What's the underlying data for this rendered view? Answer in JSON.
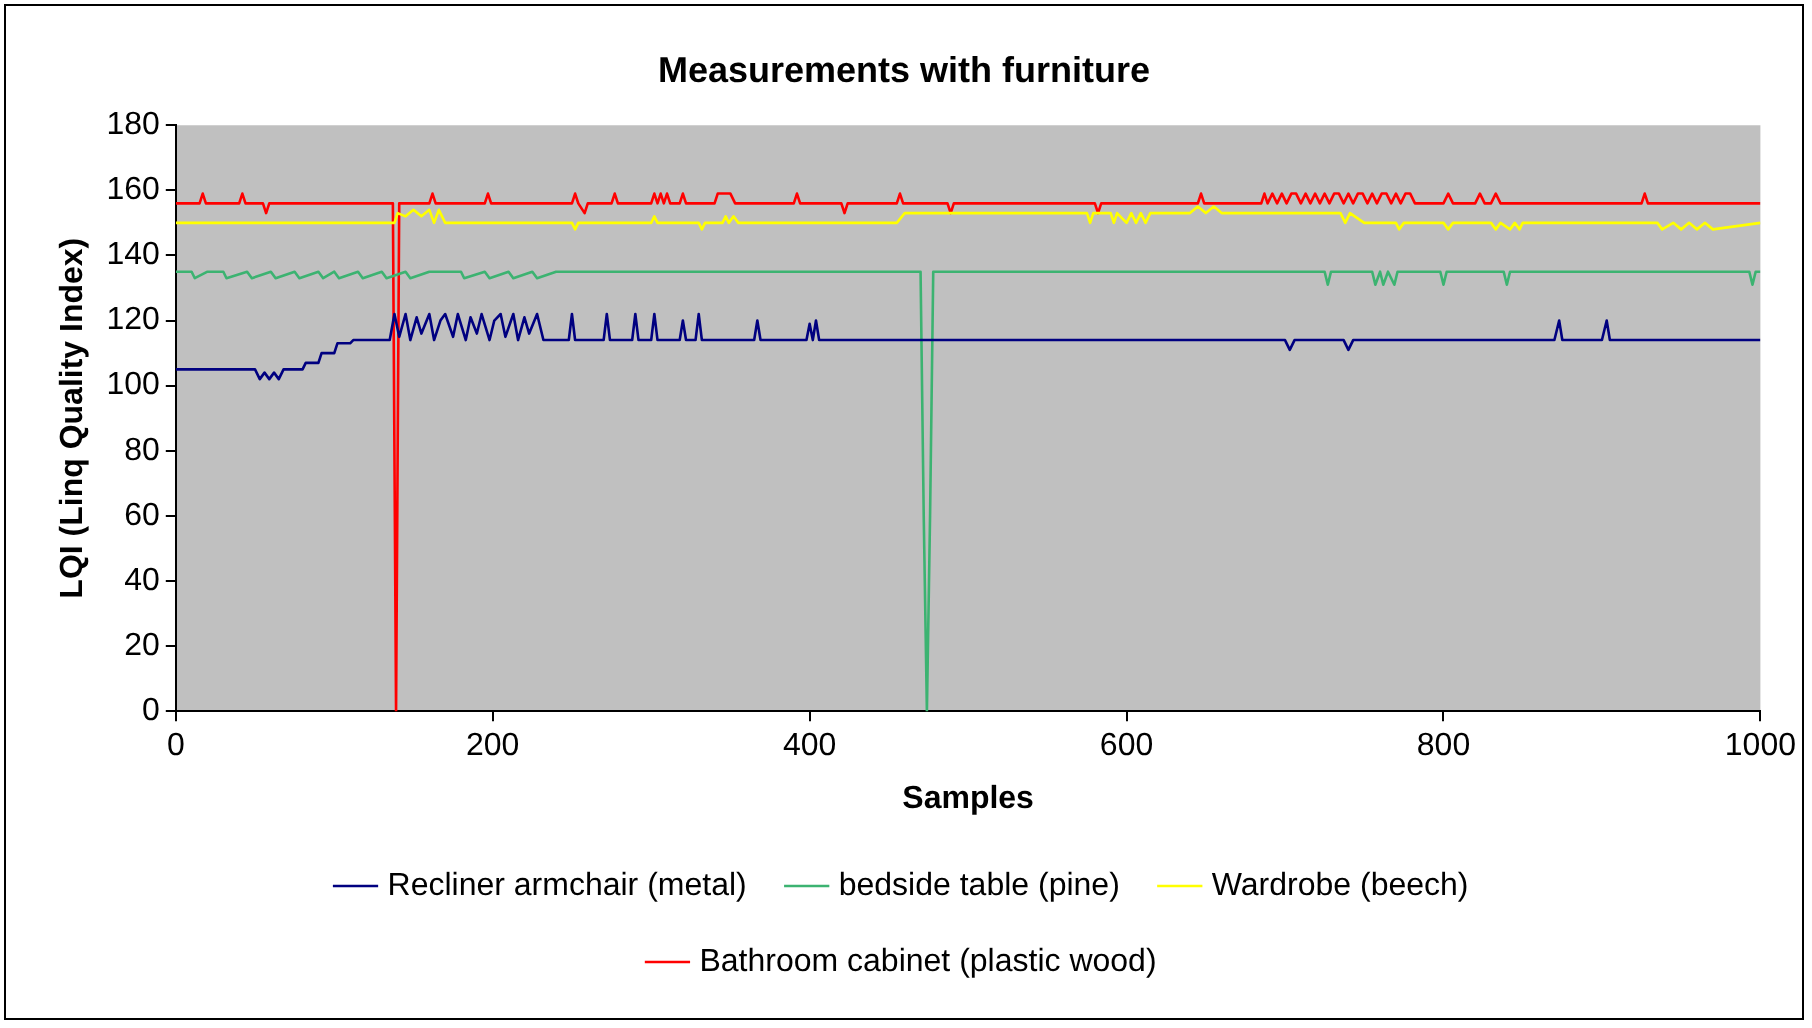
{
  "chart_data": {
    "type": "line",
    "title": "Measurements with furniture",
    "xlabel": "Samples",
    "ylabel": "LQI (Linq Quality Index)",
    "xlim": [
      0,
      1000
    ],
    "xticks": [
      0,
      200,
      400,
      600,
      800,
      1000
    ],
    "ylim": [
      0,
      180
    ],
    "yticks": [
      0,
      20,
      40,
      60,
      80,
      100,
      120,
      140,
      160,
      180
    ],
    "grid": false,
    "legend": "bottom",
    "marker": "none",
    "line_style": "solid",
    "series": [
      {
        "name": "Recliner armchair (metal)",
        "color": "#000080",
        "x": [
          0,
          50,
          53,
          56,
          59,
          62,
          65,
          68,
          72,
          80,
          82,
          90,
          92,
          100,
          102,
          110,
          112,
          135,
          138,
          141,
          145,
          148,
          152,
          155,
          160,
          163,
          167,
          170,
          175,
          178,
          183,
          186,
          190,
          193,
          198,
          201,
          205,
          208,
          213,
          216,
          220,
          223,
          228,
          232,
          236,
          248,
          250,
          252,
          270,
          272,
          274,
          288,
          290,
          292,
          300,
          302,
          304,
          318,
          320,
          322,
          328,
          330,
          332,
          365,
          367,
          369,
          398,
          400,
          402,
          404,
          406,
          408,
          700,
          703,
          706,
          737,
          740,
          743,
          870,
          873,
          875,
          900,
          903,
          905,
          1000
        ],
        "values": [
          105,
          105,
          102,
          104,
          102,
          104,
          102,
          105,
          105,
          105,
          107,
          107,
          110,
          110,
          113,
          113,
          114,
          114,
          122,
          115,
          122,
          114,
          121,
          116,
          122,
          114,
          120,
          122,
          115,
          122,
          114,
          121,
          116,
          122,
          114,
          120,
          122,
          115,
          122,
          114,
          121,
          116,
          122,
          114,
          114,
          114,
          122,
          114,
          114,
          122,
          114,
          114,
          122,
          114,
          114,
          122,
          114,
          114,
          120,
          114,
          114,
          122,
          114,
          114,
          120,
          114,
          114,
          119,
          114,
          120,
          114,
          114,
          114,
          111,
          114,
          114,
          111,
          114,
          114,
          120,
          114,
          114,
          120,
          114,
          114
        ]
      },
      {
        "name": "bedside table (pine)",
        "color": "#3cb371",
        "x": [
          0,
          10,
          12,
          20,
          30,
          32,
          45,
          48,
          60,
          63,
          75,
          78,
          90,
          93,
          100,
          103,
          115,
          118,
          130,
          133,
          145,
          148,
          160,
          180,
          182,
          195,
          198,
          210,
          213,
          225,
          228,
          240,
          470,
          472,
          474,
          476,
          478,
          725,
          727,
          729,
          755,
          757,
          760,
          762,
          765,
          769,
          771,
          798,
          800,
          802,
          838,
          840,
          842,
          993,
          995,
          997,
          1000
        ],
        "values": [
          135,
          135,
          133,
          135,
          135,
          133,
          135,
          133,
          135,
          133,
          135,
          133,
          135,
          133,
          135,
          133,
          135,
          133,
          135,
          133,
          135,
          133,
          135,
          135,
          133,
          135,
          133,
          135,
          133,
          135,
          133,
          135,
          135,
          60,
          0,
          60,
          135,
          135,
          131,
          135,
          135,
          131,
          135,
          131,
          135,
          131,
          135,
          135,
          131,
          135,
          135,
          131,
          135,
          135,
          131,
          135,
          135
        ]
      },
      {
        "name": "Wardrobe (beech)",
        "color": "#ffff00",
        "x": [
          0,
          138,
          140,
          145,
          150,
          155,
          160,
          163,
          166,
          170,
          175,
          180,
          250,
          252,
          254,
          300,
          302,
          304,
          330,
          332,
          334,
          345,
          347,
          349,
          352,
          355,
          360,
          455,
          460,
          575,
          577,
          579,
          590,
          592,
          594,
          600,
          603,
          606,
          609,
          612,
          615,
          640,
          645,
          650,
          655,
          660,
          735,
          738,
          741,
          750,
          753,
          770,
          772,
          775,
          800,
          803,
          806,
          830,
          833,
          836,
          842,
          845,
          848,
          850,
          853,
          935,
          938,
          945,
          950,
          955,
          960,
          965,
          970,
          1000
        ],
        "values": [
          150,
          150,
          153,
          152,
          154,
          152,
          154,
          150,
          154,
          150,
          150,
          150,
          150,
          148,
          150,
          150,
          152,
          150,
          150,
          148,
          150,
          150,
          152,
          150,
          152,
          150,
          150,
          150,
          153,
          153,
          150,
          153,
          153,
          150,
          153,
          150,
          153,
          150,
          153,
          150,
          153,
          153,
          155,
          153,
          155,
          153,
          153,
          150,
          153,
          150,
          150,
          150,
          148,
          150,
          150,
          148,
          150,
          150,
          148,
          150,
          148,
          150,
          148,
          150,
          150,
          150,
          148,
          150,
          148,
          150,
          148,
          150,
          148,
          150
        ]
      },
      {
        "name": "Bathroom cabinet (plastic wood)",
        "color": "#ff0000",
        "x": [
          0,
          15,
          17,
          19,
          40,
          42,
          44,
          55,
          57,
          59,
          137,
          139,
          141,
          160,
          162,
          164,
          195,
          197,
          199,
          250,
          252,
          254,
          258,
          260,
          275,
          277,
          279,
          300,
          302,
          304,
          306,
          308,
          310,
          312,
          318,
          320,
          322,
          340,
          342,
          350,
          353,
          390,
          392,
          394,
          420,
          422,
          424,
          455,
          457,
          459,
          487,
          489,
          491,
          580,
          582,
          584,
          645,
          647,
          649,
          685,
          687,
          689,
          692,
          695,
          698,
          701,
          704,
          707,
          710,
          713,
          716,
          719,
          722,
          725,
          728,
          731,
          734,
          737,
          740,
          743,
          746,
          749,
          752,
          755,
          758,
          761,
          764,
          767,
          770,
          773,
          776,
          779,
          782,
          800,
          803,
          806,
          820,
          823,
          826,
          830,
          833,
          836,
          925,
          927,
          929,
          1000
        ],
        "values": [
          156,
          156,
          159,
          156,
          156,
          159,
          156,
          156,
          153,
          156,
          156,
          0,
          156,
          156,
          159,
          156,
          156,
          159,
          156,
          156,
          159,
          156,
          153,
          156,
          156,
          159,
          156,
          156,
          159,
          156,
          159,
          156,
          159,
          156,
          156,
          159,
          156,
          156,
          159,
          159,
          156,
          156,
          159,
          156,
          156,
          153,
          156,
          156,
          159,
          156,
          156,
          153,
          156,
          156,
          153,
          156,
          156,
          159,
          156,
          156,
          159,
          156,
          159,
          156,
          159,
          156,
          159,
          159,
          156,
          159,
          156,
          159,
          156,
          159,
          156,
          159,
          159,
          156,
          159,
          156,
          159,
          159,
          156,
          159,
          156,
          159,
          159,
          156,
          159,
          156,
          159,
          159,
          156,
          156,
          159,
          156,
          156,
          159,
          156,
          156,
          159,
          156,
          156,
          159,
          156,
          156
        ]
      }
    ]
  }
}
